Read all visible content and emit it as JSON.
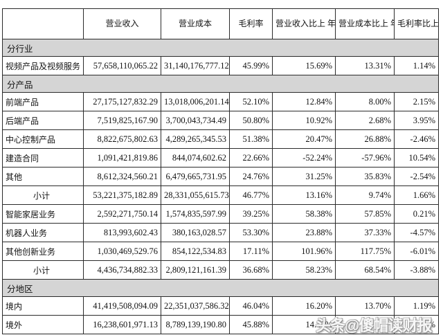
{
  "watermark": {
    "text": "头条@傻帽读财报"
  },
  "table": {
    "columns": [
      "",
      "营业收入",
      "营业成本",
      "毛利率",
      "营业收入比上\n年同期增减",
      "营业成本比上\n年同期增减",
      "毛利率比上\n年同期增减"
    ],
    "rows": [
      {
        "type": "section",
        "label": "分行业",
        "values": []
      },
      {
        "type": "data",
        "label": "视频产品及视频服务",
        "values": [
          "57,658,110,065.22",
          "31,140,176,777.12",
          "45.99%",
          "15.69%",
          "13.31%",
          "1.14%"
        ]
      },
      {
        "type": "section",
        "label": "分产品",
        "values": []
      },
      {
        "type": "data",
        "label": "前端产品",
        "values": [
          "27,175,127,832.29",
          "13,018,006,201.14",
          "52.10%",
          "12.84%",
          "8.00%",
          "2.15%"
        ]
      },
      {
        "type": "data",
        "label": "后端产品",
        "values": [
          "7,519,825,167.90",
          "3,700,043,734.49",
          "50.80%",
          "10.92%",
          "2.68%",
          "3.95%"
        ]
      },
      {
        "type": "data",
        "label": "中心控制产品",
        "values": [
          "8,822,675,802.63",
          "4,289,265,345.53",
          "51.38%",
          "20.47%",
          "26.88%",
          "-2.46%"
        ]
      },
      {
        "type": "data",
        "label": "建造合同",
        "values": [
          "1,091,421,819.86",
          "844,074,602.62",
          "22.66%",
          "-52.24%",
          "-57.96%",
          "10.54%"
        ]
      },
      {
        "type": "data",
        "label": "其他",
        "values": [
          "8,612,324,560.21",
          "6,479,665,731.95",
          "24.76%",
          "31.25%",
          "35.83%",
          "-2.54%"
        ]
      },
      {
        "type": "subtotal",
        "label": "小计",
        "values": [
          "53,221,375,182.89",
          "28,331,055,615.73",
          "46.77%",
          "13.16%",
          "9.74%",
          "1.66%"
        ]
      },
      {
        "type": "data",
        "label": "智能家居业务",
        "values": [
          "2,592,271,750.14",
          "1,574,835,597.99",
          "39.25%",
          "58.38%",
          "57.85%",
          "0.21%"
        ]
      },
      {
        "type": "data",
        "label": "机器人业务",
        "values": [
          "813,993,602.43",
          "380,163,028.57",
          "53.30%",
          "23.88%",
          "37.33%",
          "-4.57%"
        ]
      },
      {
        "type": "data",
        "label": "其他创新业务",
        "values": [
          "1,030,469,529.76",
          "854,122,534.83",
          "17.11%",
          "101.96%",
          "117.75%",
          "-6.01%"
        ]
      },
      {
        "type": "subtotal",
        "label": "小计",
        "values": [
          "4,436,734,882.33",
          "2,809,121,161.39",
          "36.68%",
          "58.23%",
          "68.54%",
          "-3.88%"
        ]
      },
      {
        "type": "section",
        "label": "分地区",
        "values": []
      },
      {
        "type": "data",
        "label": "境内",
        "values": [
          "41,419,508,094.09",
          "22,351,037,586.32",
          "46.04%",
          "16.20%",
          "13.70%",
          "1.19%"
        ]
      },
      {
        "type": "data",
        "label": "境外",
        "values": [
          "16,238,601,971.13",
          "8,789,139,190.80",
          "45.88%",
          "14.43%",
          "",
          "%"
        ]
      }
    ]
  }
}
